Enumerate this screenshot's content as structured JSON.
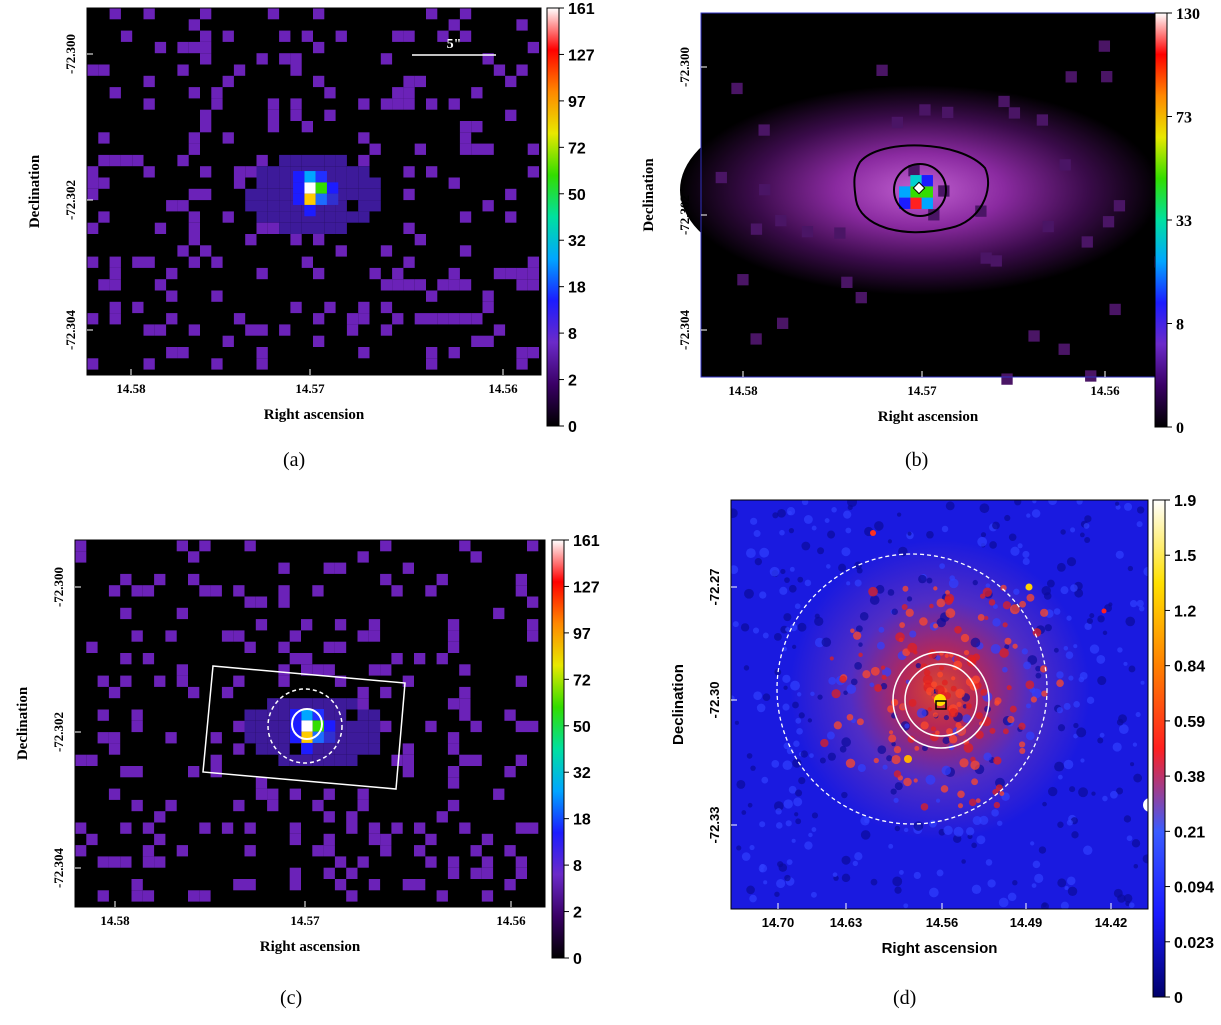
{
  "panels": [
    {
      "id": "a",
      "caption": "(a)",
      "xlabel": "Right ascension",
      "ylabel": "Declination",
      "xticks": [
        "14.58",
        "14.57",
        "14.56"
      ],
      "yticks": [
        "-72.300",
        "-72.302",
        "-72.304"
      ],
      "colorbar_ticks": [
        "161",
        "127",
        "97",
        "72",
        "50",
        "32",
        "18",
        "8",
        "2",
        "0"
      ],
      "scale_bar_label": "5\"",
      "colormap": "spectral",
      "background": "#000000"
    },
    {
      "id": "b",
      "caption": "(b)",
      "xlabel": "Right ascension",
      "ylabel": "Declination",
      "xticks": [
        "14.58",
        "14.57",
        "14.56"
      ],
      "yticks": [
        "-72.300",
        "-72.302",
        "-72.304"
      ],
      "colorbar_ticks": [
        "130",
        "73",
        "33",
        "8",
        "0"
      ],
      "colormap": "spectral",
      "background": "#000000"
    },
    {
      "id": "c",
      "caption": "(c)",
      "xlabel": "Right ascension",
      "ylabel": "Declination",
      "xticks": [
        "14.58",
        "14.57",
        "14.56"
      ],
      "yticks": [
        "-72.300",
        "-72.302",
        "-72.304"
      ],
      "colorbar_ticks": [
        "161",
        "127",
        "97",
        "72",
        "50",
        "32",
        "18",
        "8",
        "2",
        "0"
      ],
      "colormap": "spectral",
      "background": "#000000"
    },
    {
      "id": "d",
      "caption": "(d)",
      "xlabel": "Right ascension",
      "ylabel": "Declination",
      "xticks": [
        "14.70",
        "14.63",
        "14.56",
        "14.49",
        "14.42"
      ],
      "yticks": [
        "-72.27",
        "-72.30",
        "-72.33"
      ],
      "colorbar_ticks": [
        "1.9",
        "1.5",
        "1.2",
        "0.84",
        "0.59",
        "0.38",
        "0.21",
        "0.094",
        "0.023",
        "0"
      ],
      "colormap": "heat",
      "background": "#1a1ae0"
    }
  ]
}
